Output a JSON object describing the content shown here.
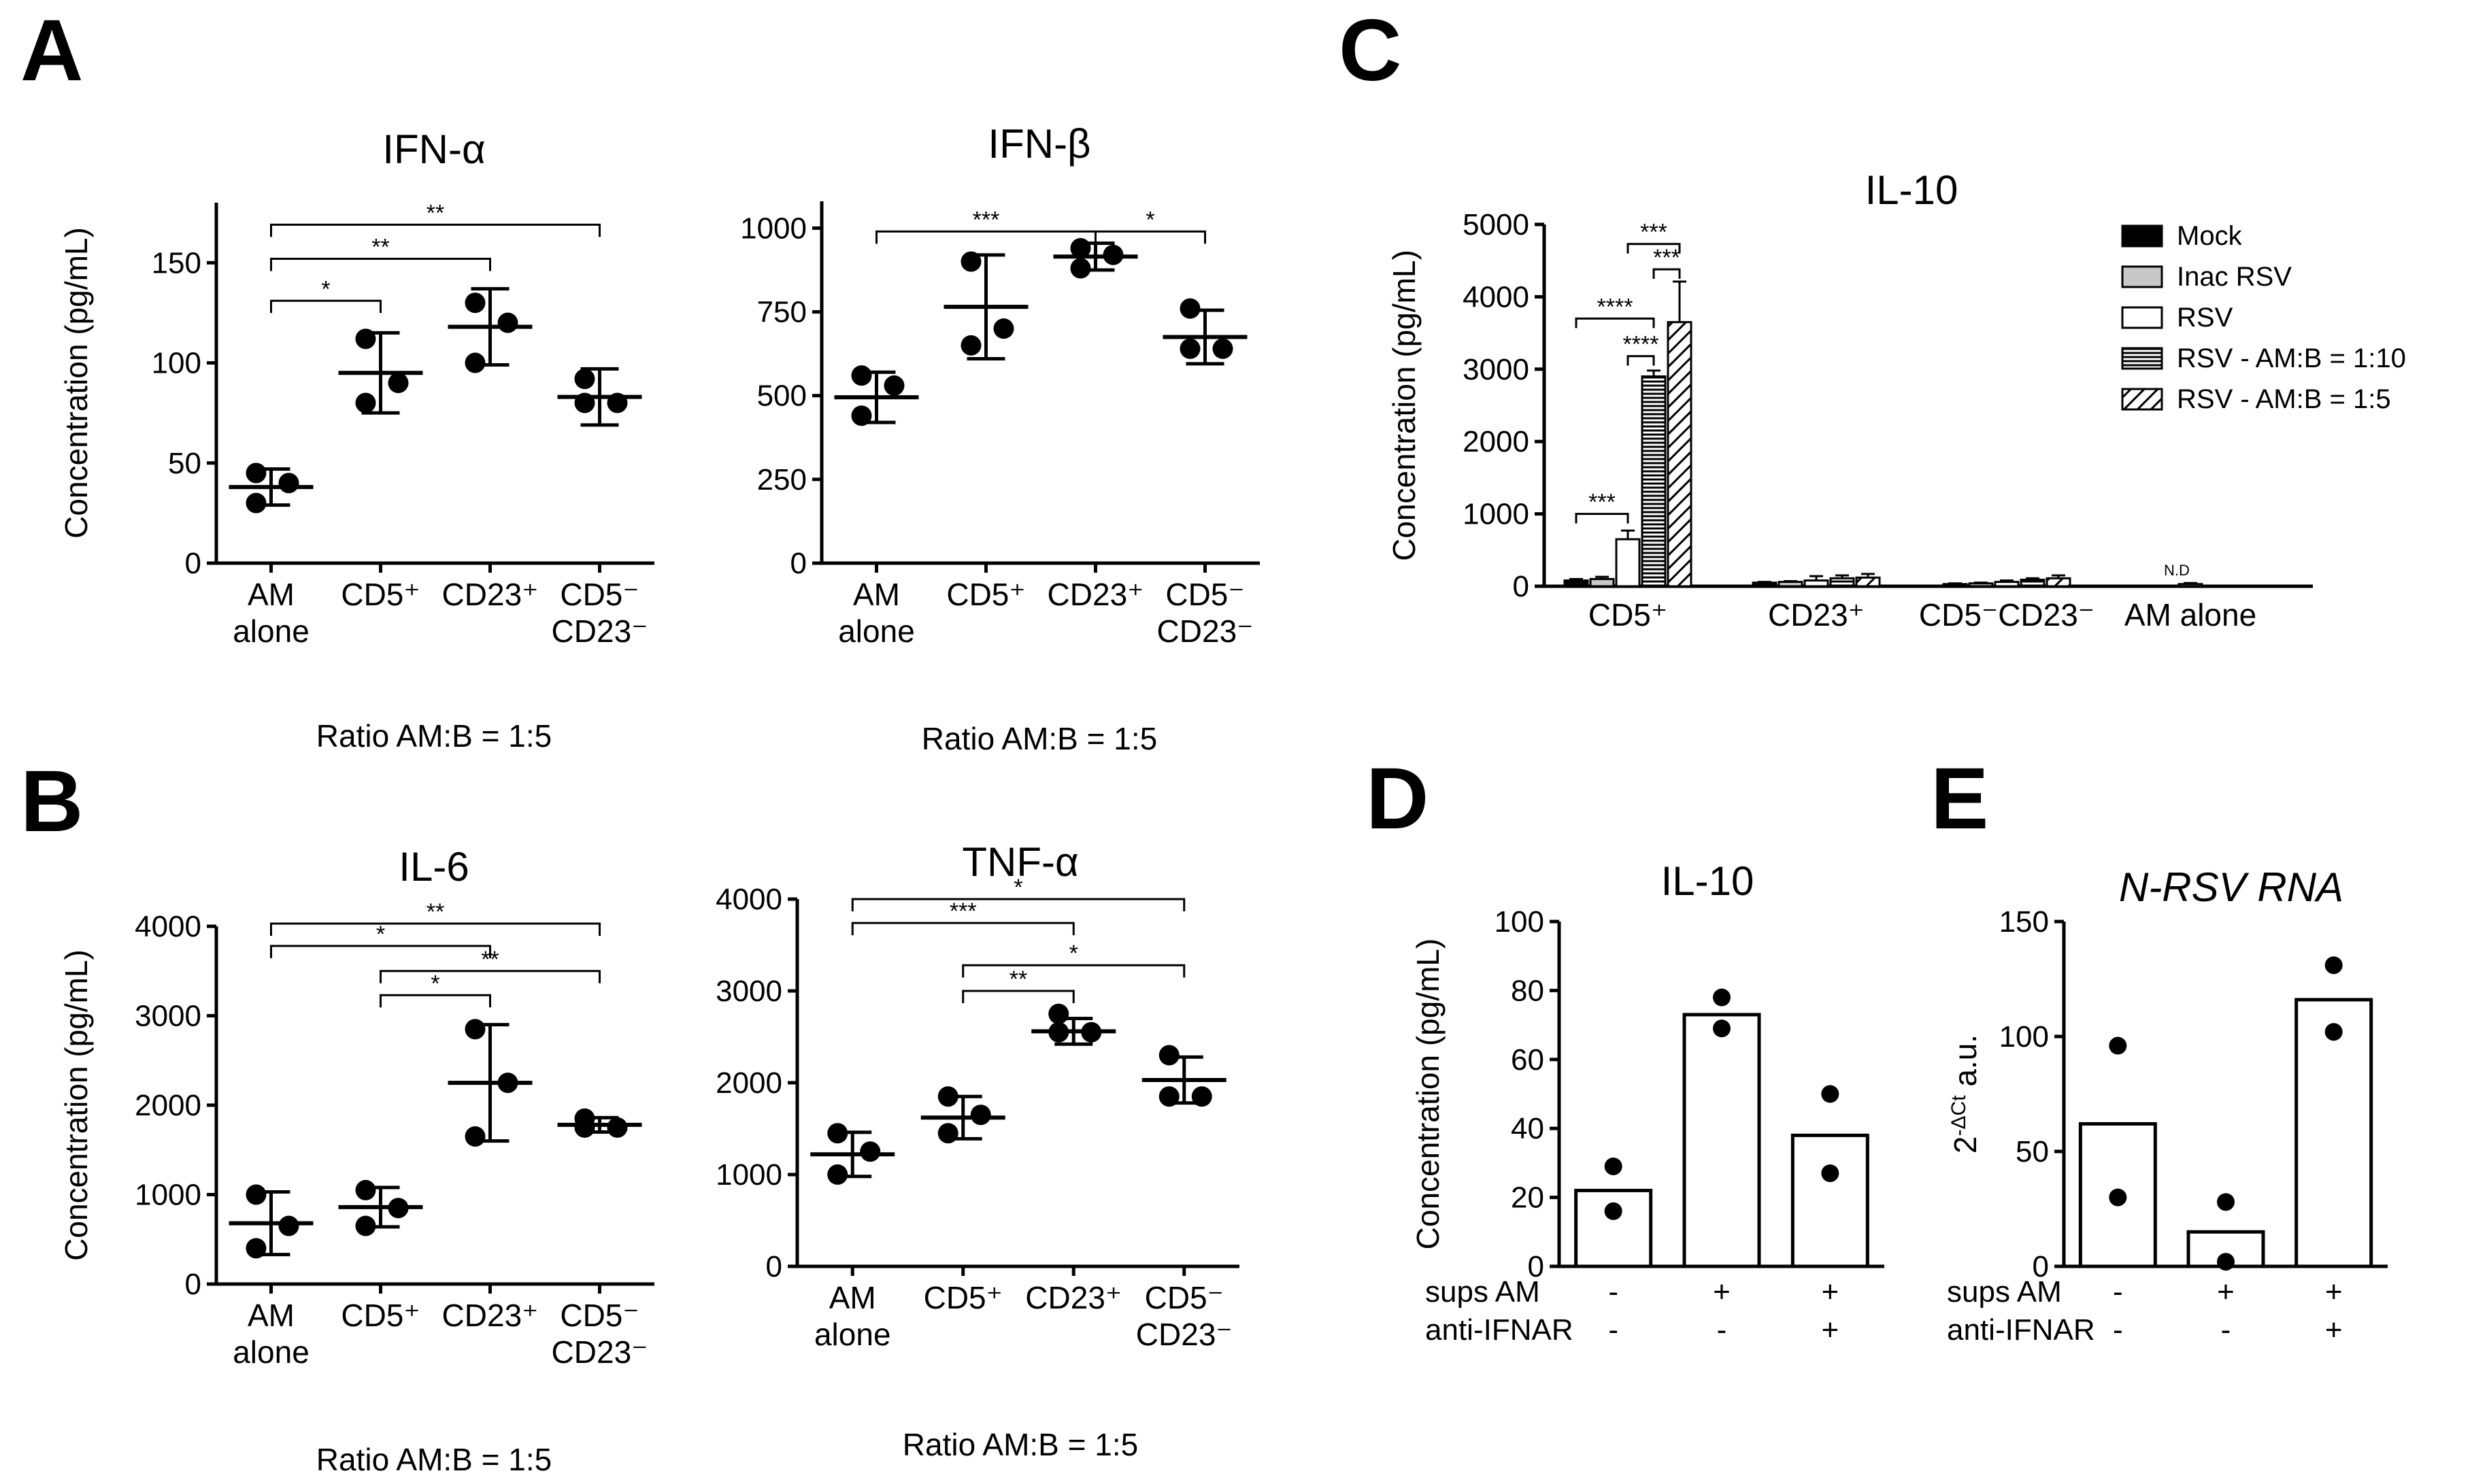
{
  "panels": {
    "A": "A",
    "B": "B",
    "C": "C",
    "D": "D",
    "E": "E"
  },
  "ratio_label": "Ratio AM:B = 1:5",
  "chart_data": [
    {
      "id": "ifn_alpha",
      "panel": "A",
      "type": "scatter",
      "title": "IFN-α",
      "ylabel": "Concentration (pg/mL)",
      "ylim": [
        0,
        180
      ],
      "yticks": [
        0,
        50,
        100,
        150
      ],
      "categories": [
        [
          "AM",
          "alone"
        ],
        [
          "CD5⁺"
        ],
        [
          "CD23⁺"
        ],
        [
          "CD5⁻",
          "CD23⁻"
        ]
      ],
      "points": [
        [
          45,
          40,
          30
        ],
        [
          112,
          90,
          80
        ],
        [
          130,
          120,
          100
        ],
        [
          92,
          80,
          80
        ]
      ],
      "mean": [
        38,
        95,
        118,
        83
      ],
      "sd": [
        9,
        20,
        19,
        14
      ],
      "significance": [
        {
          "from": 0,
          "to": 1,
          "label": "*",
          "y": 131
        },
        {
          "from": 0,
          "to": 2,
          "label": "**",
          "y": 152
        },
        {
          "from": 0,
          "to": 3,
          "label": "**",
          "y": 169
        }
      ],
      "xlabel": "Ratio AM:B = 1:5"
    },
    {
      "id": "ifn_beta",
      "panel": "A",
      "type": "scatter",
      "title": "IFN-β",
      "ylabel": "",
      "ylim": [
        0,
        1080
      ],
      "yticks": [
        0,
        250,
        500,
        750,
        1000
      ],
      "categories": [
        [
          "AM",
          "alone"
        ],
        [
          "CD5⁺"
        ],
        [
          "CD23⁺"
        ],
        [
          "CD5⁻",
          "CD23⁻"
        ]
      ],
      "points": [
        [
          560,
          530,
          440
        ],
        [
          900,
          700,
          650
        ],
        [
          940,
          920,
          880
        ],
        [
          760,
          640,
          640
        ]
      ],
      "mean": [
        495,
        765,
        915,
        675
      ],
      "sd": [
        75,
        155,
        40,
        80
      ],
      "significance": [
        {
          "from": 0,
          "to": 2,
          "label": "***",
          "y": 990
        },
        {
          "from": 2,
          "to": 3,
          "label": "*",
          "y": 990
        }
      ],
      "xlabel": "Ratio AM:B = 1:5"
    },
    {
      "id": "il6",
      "panel": "B",
      "type": "scatter",
      "title": "IL-6",
      "ylabel": "Concentration (pg/mL)",
      "ylim": [
        0,
        4000
      ],
      "yticks": [
        0,
        1000,
        2000,
        3000,
        4000
      ],
      "categories": [
        [
          "AM",
          "alone"
        ],
        [
          "CD5⁺"
        ],
        [
          "CD23⁺"
        ],
        [
          "CD5⁻",
          "CD23⁻"
        ]
      ],
      "points": [
        [
          1000,
          650,
          400
        ],
        [
          1050,
          850,
          650
        ],
        [
          2850,
          2250,
          1650
        ],
        [
          1850,
          1750,
          1750
        ]
      ],
      "mean": [
        680,
        860,
        2250,
        1780
      ],
      "sd": [
        350,
        220,
        650,
        80
      ],
      "significance": [
        {
          "from": 1,
          "to": 2,
          "label": "*",
          "y": 3230
        },
        {
          "from": 1,
          "to": 3,
          "label": "**",
          "y": 3500
        },
        {
          "from": 0,
          "to": 2,
          "label": "*",
          "y": 3780
        },
        {
          "from": 0,
          "to": 3,
          "label": "**",
          "y": 4030
        }
      ],
      "xlabel": "Ratio AM:B = 1:5"
    },
    {
      "id": "tnf_alpha",
      "panel": "B",
      "type": "scatter",
      "title": "TNF-α",
      "ylabel": "",
      "ylim": [
        0,
        4000
      ],
      "yticks": [
        0,
        1000,
        2000,
        3000,
        4000
      ],
      "categories": [
        [
          "AM",
          "alone"
        ],
        [
          "CD5⁺"
        ],
        [
          "CD23⁺"
        ],
        [
          "CD5⁻",
          "CD23⁻"
        ]
      ],
      "points": [
        [
          1450,
          1250,
          1000
        ],
        [
          1850,
          1650,
          1450
        ],
        [
          2750,
          2550,
          2550
        ],
        [
          2300,
          1850,
          1850
        ]
      ],
      "mean": [
        1220,
        1620,
        2560,
        2030
      ],
      "sd": [
        240,
        230,
        140,
        250
      ],
      "significance": [
        {
          "from": 1,
          "to": 2,
          "label": "**",
          "y": 3000
        },
        {
          "from": 1,
          "to": 3,
          "label": "*",
          "y": 3280
        },
        {
          "from": 0,
          "to": 2,
          "label": "***",
          "y": 3740
        },
        {
          "from": 0,
          "to": 3,
          "label": "*",
          "y": 4000
        }
      ],
      "xlabel": "Ratio AM:B = 1:5"
    },
    {
      "id": "il10_grouped",
      "panel": "C",
      "type": "bar",
      "title": "IL-10",
      "ylabel": "Concentration (pg/mL)",
      "ylim": [
        0,
        5000
      ],
      "yticks": [
        0,
        1000,
        2000,
        3000,
        4000,
        5000
      ],
      "categories": [
        "CD5⁺",
        "CD23⁺",
        "CD5⁻CD23⁻",
        "AM alone"
      ],
      "series": [
        {
          "name": "Mock",
          "pattern": "solid",
          "values": [
            80,
            50,
            30,
            null
          ],
          "err": [
            20,
            10,
            10,
            null
          ]
        },
        {
          "name": "Inac RSV",
          "pattern": "gray",
          "values": [
            100,
            60,
            40,
            null
          ],
          "err": [
            30,
            10,
            10,
            null
          ]
        },
        {
          "name": "RSV",
          "pattern": "white",
          "values": [
            650,
            80,
            60,
            30
          ],
          "err": [
            120,
            60,
            20,
            15
          ]
        },
        {
          "name": "RSV - AM:B = 1:10",
          "pattern": "hlines",
          "values": [
            2900,
            110,
            90,
            null
          ],
          "err": [
            80,
            40,
            20,
            null
          ]
        },
        {
          "name": "RSV - AM:B = 1:5",
          "pattern": "diag",
          "values": [
            3650,
            120,
            110,
            null
          ],
          "err": [
            560,
            50,
            40,
            null
          ]
        }
      ],
      "annotations": [
        {
          "category": 3,
          "label": "N.D"
        }
      ],
      "significance": [
        {
          "from": 2,
          "to": 3,
          "label": "****",
          "y": 3180
        },
        {
          "from": 3,
          "to": 4,
          "label": "***",
          "y": 4380
        },
        {
          "from": 2,
          "to": 4,
          "label": "***",
          "y": 4730
        },
        {
          "from": 0,
          "to": 3,
          "label": "****",
          "y": 3700
        },
        {
          "from": 0,
          "to": 2,
          "label": "***",
          "y": 1000
        }
      ],
      "legend_position": "top-right"
    },
    {
      "id": "il10_sups",
      "panel": "D",
      "type": "bar",
      "title": "IL-10",
      "ylabel": "Concentration (pg/mL)",
      "ylim": [
        0,
        100
      ],
      "yticks": [
        0,
        20,
        40,
        60,
        80,
        100
      ],
      "values": [
        22,
        73,
        38
      ],
      "points": [
        [
          29,
          16
        ],
        [
          78,
          69
        ],
        [
          50,
          27
        ]
      ],
      "conditions": [
        {
          "label": "sups AM",
          "values": [
            "-",
            "+",
            "+"
          ]
        },
        {
          "label": "anti-IFNAR",
          "values": [
            "-",
            "-",
            "+"
          ]
        }
      ]
    },
    {
      "id": "n_rsv_rna",
      "panel": "E",
      "type": "bar",
      "title": "N-RSV RNA",
      "ylabel_base": "2",
      "ylabel_sup": "-ΔCt",
      "ylabel_unit": "a.u.",
      "ylim": [
        0,
        150
      ],
      "yticks": [
        0,
        50,
        100,
        150
      ],
      "values": [
        62,
        15,
        116
      ],
      "points": [
        [
          96,
          30
        ],
        [
          28,
          2
        ],
        [
          131,
          102
        ]
      ],
      "conditions": [
        {
          "label": "sups AM",
          "values": [
            "-",
            "+",
            "+"
          ]
        },
        {
          "label": "anti-IFNAR",
          "values": [
            "-",
            "-",
            "+"
          ]
        }
      ]
    }
  ]
}
